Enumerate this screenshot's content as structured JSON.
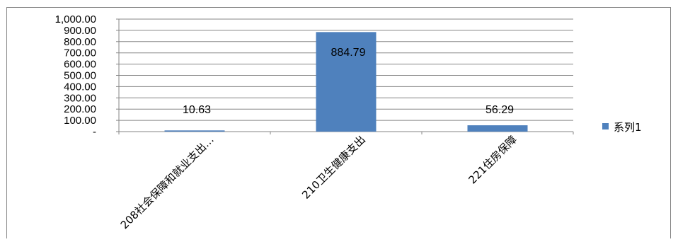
{
  "chart_data": {
    "type": "bar",
    "categories": [
      "208社会保障和就业支出…",
      "210卫生健康支出",
      "221住房保障"
    ],
    "series": [
      {
        "name": "系列1",
        "values": [
          10.63,
          884.79,
          56.29
        ],
        "color": "#4F81BD"
      }
    ],
    "data_labels": [
      "10.63",
      "884.79",
      "56.29"
    ],
    "y_tick_labels": [
      "-",
      "100.00",
      "200.00",
      "300.00",
      "400.00",
      "500.00",
      "600.00",
      "700.00",
      "800.00",
      "900.00",
      "1,000.00"
    ],
    "ylim": [
      0,
      1000
    ],
    "grid": true,
    "legend_position": "right",
    "title": "",
    "xlabel": "",
    "ylabel": ""
  }
}
